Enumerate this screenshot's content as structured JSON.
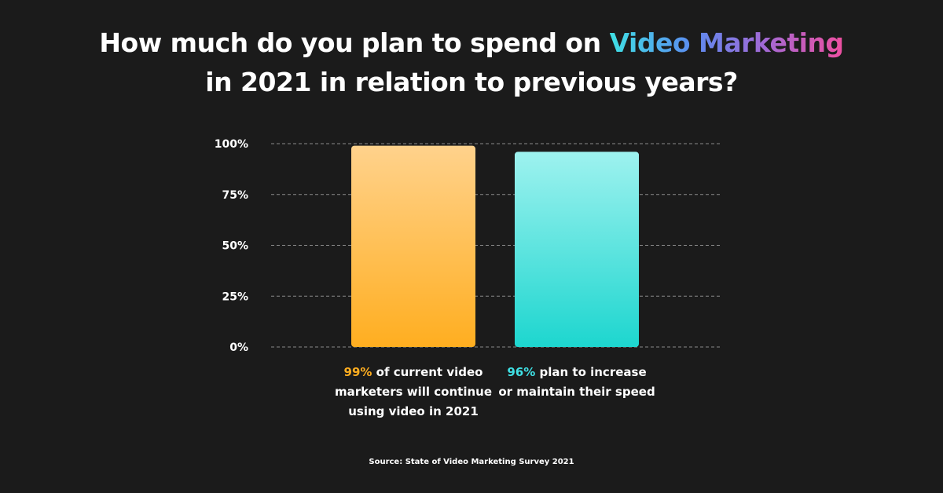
{
  "title": {
    "line1_prefix": "How much do you plan to spend on",
    "line1_highlight": "Video Marketing",
    "line2": "in 2021 in relation to previous years?"
  },
  "colors": {
    "background": "#1b1b1b",
    "bar1_top": "#ffd28c",
    "bar1_bottom": "#ffae20",
    "bar2_top": "#9ef2ef",
    "bar2_bottom": "#1dd6cf",
    "highlight1": "#ffae20",
    "highlight2": "#3fe0e4"
  },
  "chart_data": {
    "type": "bar",
    "categories": [
      "99% of current video marketers will continue using video in 2021",
      "96% plan to increase or maintain their speed"
    ],
    "values": [
      99,
      96
    ],
    "ylim": [
      0,
      100
    ],
    "y_ticks": [
      "0%",
      "25%",
      "50%",
      "75%",
      "100%"
    ],
    "y_tick_values": [
      0,
      25,
      50,
      75,
      100
    ],
    "grid": true,
    "xlabel": "",
    "ylabel": ""
  },
  "captions": [
    {
      "percent": "99%",
      "line1": "of current video",
      "line2": "marketers will continue",
      "line3": "using video in 2021"
    },
    {
      "percent": "96%",
      "line1": "plan to increase",
      "line2": "or maintain their speed"
    }
  ],
  "source": "Source: State of Video Marketing Survey 2021"
}
